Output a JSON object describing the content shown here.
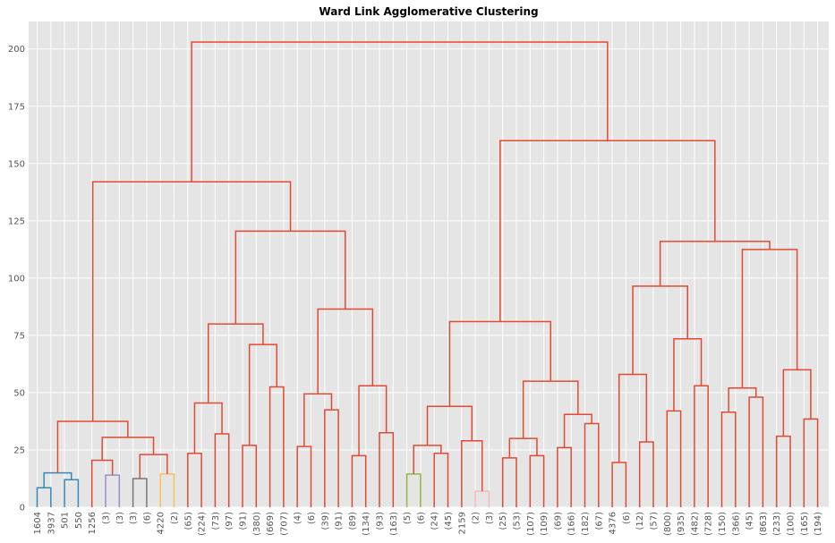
{
  "chart_data": {
    "type": "dendrogram",
    "title": "Ward Link Agglomerative Clustering",
    "xlabel": "",
    "ylabel": "",
    "ylim": [
      0,
      212
    ],
    "yticks": [
      0,
      25,
      50,
      75,
      100,
      125,
      150,
      175,
      200
    ],
    "grid": true,
    "background": "#E5E5E5",
    "grid_color": "#FFFFFF",
    "leaf_labels": [
      "1604",
      "3937",
      "501",
      "550",
      "1256",
      "(3)",
      "(3)",
      "(3)",
      "(6)",
      "4220",
      "(2)",
      "(65)",
      "(224)",
      "(73)",
      "(97)",
      "(91)",
      "(380)",
      "(669)",
      "(707)",
      "(4)",
      "(6)",
      "(39)",
      "(91)",
      "(89)",
      "(134)",
      "(93)",
      "(163)",
      "(5)",
      "(6)",
      "(24)",
      "(45)",
      "2159",
      "(2)",
      "(3)",
      "(25)",
      "(53)",
      "(107)",
      "(109)",
      "(69)",
      "(166)",
      "(182)",
      "(67)",
      "4376",
      "(6)",
      "(12)",
      "(57)",
      "(800)",
      "(935)",
      "(482)",
      "(728)",
      "(150)",
      "(366)",
      "(45)",
      "(863)",
      "(233)",
      "(100)",
      "(165)",
      "(194)"
    ],
    "colors": {
      "blue": "#348ABD",
      "purple": "#988ED5",
      "gray": "#777777",
      "yellow": "#FBC15E",
      "green": "#8EBA42",
      "pink": "#FFB5B8",
      "red": "#E24A33"
    },
    "links": [
      {
        "left": 0,
        "right": 1,
        "height": 8.5,
        "color": "blue"
      },
      {
        "left": 2,
        "right": 3,
        "height": 12,
        "color": "blue"
      },
      {
        "left": "L0",
        "right": "L1",
        "height": 15,
        "color": "blue"
      },
      {
        "left": 5,
        "right": 6,
        "height": 14,
        "color": "purple"
      },
      {
        "left": 7,
        "right": 8,
        "height": 12.5,
        "color": "gray"
      },
      {
        "left": 9,
        "right": 10,
        "height": 14.5,
        "color": "yellow"
      },
      {
        "left": 4,
        "right": "L3",
        "height": 20.5,
        "color": "red"
      },
      {
        "left": "L4",
        "right": "L5",
        "height": 23,
        "color": "red"
      },
      {
        "left": "L6",
        "right": "L7",
        "height": 30.5,
        "color": "red"
      },
      {
        "left": "L2",
        "right": "L8",
        "height": 37.5,
        "color": "red"
      },
      {
        "left": 11,
        "right": 12,
        "height": 23.5,
        "color": "red"
      },
      {
        "left": 13,
        "right": 14,
        "height": 32,
        "color": "red"
      },
      {
        "left": "L10",
        "right": "L11",
        "height": 45.5,
        "color": "red"
      },
      {
        "left": 15,
        "right": 16,
        "height": 27,
        "color": "red"
      },
      {
        "left": 17,
        "right": 18,
        "height": 52.5,
        "color": "red"
      },
      {
        "left": "L13",
        "right": "L14",
        "height": 71,
        "color": "red"
      },
      {
        "left": "L12",
        "right": "L15",
        "height": 80,
        "color": "red"
      },
      {
        "left": 19,
        "right": 20,
        "height": 26.5,
        "color": "red"
      },
      {
        "left": 21,
        "right": 22,
        "height": 42.5,
        "color": "red"
      },
      {
        "left": "L17",
        "right": "L18",
        "height": 49.5,
        "color": "red"
      },
      {
        "left": 23,
        "right": 24,
        "height": 22.5,
        "color": "red"
      },
      {
        "left": 25,
        "right": 26,
        "height": 32.5,
        "color": "red"
      },
      {
        "left": "L20",
        "right": "L21",
        "height": 53,
        "color": "red"
      },
      {
        "left": "L19",
        "right": "L22",
        "height": 86.5,
        "color": "red"
      },
      {
        "left": "L16",
        "right": "L23",
        "height": 120.5,
        "color": "red"
      },
      {
        "left": "L9",
        "right": "L24",
        "height": 142,
        "color": "red"
      },
      {
        "left": 27,
        "right": 28,
        "height": 14.5,
        "color": "green"
      },
      {
        "left": 29,
        "right": 30,
        "height": 23.5,
        "color": "red"
      },
      {
        "left": "L26",
        "right": "L27",
        "height": 27,
        "color": "red"
      },
      {
        "left": 32,
        "right": 33,
        "height": 7,
        "color": "pink"
      },
      {
        "left": 31,
        "right": "L29",
        "height": 29,
        "color": "red"
      },
      {
        "left": "L28",
        "right": "L30",
        "height": 44,
        "color": "red"
      },
      {
        "left": 34,
        "right": 35,
        "height": 21.5,
        "color": "red"
      },
      {
        "left": 36,
        "right": 37,
        "height": 22.5,
        "color": "red"
      },
      {
        "left": "L32",
        "right": "L33",
        "height": 30,
        "color": "red"
      },
      {
        "left": 38,
        "right": 39,
        "height": 26,
        "color": "red"
      },
      {
        "left": 40,
        "right": 41,
        "height": 36.5,
        "color": "red"
      },
      {
        "left": "L35",
        "right": "L36",
        "height": 40.5,
        "color": "red"
      },
      {
        "left": "L34",
        "right": "L37",
        "height": 55,
        "color": "red"
      },
      {
        "left": "L31",
        "right": "L38",
        "height": 81,
        "color": "red"
      },
      {
        "left": 42,
        "right": 43,
        "height": 19.5,
        "color": "red"
      },
      {
        "left": 44,
        "right": 45,
        "height": 28.5,
        "color": "red"
      },
      {
        "left": "L40",
        "right": "L41",
        "height": 58,
        "color": "red"
      },
      {
        "left": 46,
        "right": 47,
        "height": 42,
        "color": "red"
      },
      {
        "left": 48,
        "right": 49,
        "height": 53,
        "color": "red"
      },
      {
        "left": "L43",
        "right": "L44",
        "height": 73.5,
        "color": "red"
      },
      {
        "left": "L42",
        "right": "L45",
        "height": 96.5,
        "color": "red"
      },
      {
        "left": 50,
        "right": 51,
        "height": 41.5,
        "color": "red"
      },
      {
        "left": 52,
        "right": 53,
        "height": 48,
        "color": "red"
      },
      {
        "left": "L47",
        "right": "L48",
        "height": 52,
        "color": "red"
      },
      {
        "left": 54,
        "right": 55,
        "height": 31,
        "color": "red"
      },
      {
        "left": 56,
        "right": 57,
        "height": 38.5,
        "color": "red"
      },
      {
        "left": "L50",
        "right": "L51",
        "height": 60,
        "color": "red"
      },
      {
        "left": "L49",
        "right": "L52",
        "height": 112.5,
        "color": "red"
      },
      {
        "left": "L46",
        "right": "L53",
        "height": 116,
        "color": "red"
      },
      {
        "left": "L39",
        "right": "L54",
        "height": 160,
        "color": "red"
      },
      {
        "left": "L25",
        "right": "L55",
        "height": 203,
        "color": "red"
      }
    ]
  }
}
